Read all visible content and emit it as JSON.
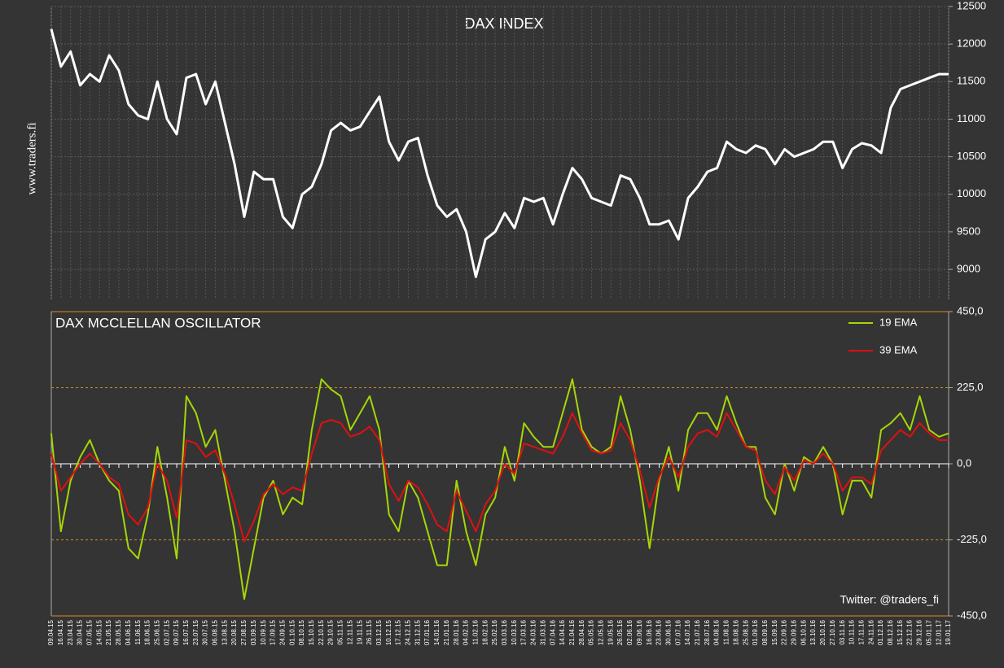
{
  "chart_data": [
    {
      "type": "line",
      "title": "DAX INDEX",
      "side_label": "www.traders.fi",
      "series": [
        {
          "name": "DAX",
          "color": "#ffffff",
          "values": [
            12200,
            11700,
            11900,
            11450,
            11600,
            11500,
            11850,
            11650,
            11200,
            11050,
            11000,
            11500,
            11000,
            10800,
            11550,
            11600,
            11200,
            11500,
            10950,
            10400,
            9700,
            10300,
            10200,
            10200,
            9700,
            9550,
            10000,
            10100,
            10400,
            10850,
            10950,
            10850,
            10900,
            11100,
            11300,
            10700,
            10450,
            10700,
            10750,
            10250,
            9850,
            9700,
            9800,
            9500,
            8900,
            9400,
            9500,
            9750,
            9550,
            9950,
            9900,
            9950,
            9600,
            10000,
            10350,
            10200,
            9950,
            9900,
            9850,
            10250,
            10200,
            9950,
            9600,
            9600,
            9650,
            9400,
            9950,
            10100,
            10300,
            10350,
            10700,
            10600,
            10550,
            10650,
            10600,
            10400,
            10600,
            10500,
            10550,
            10600,
            10700,
            10700,
            10350,
            10600,
            10680,
            10650,
            10550,
            11150,
            11400,
            11450,
            11500,
            11550,
            11600,
            11600
          ]
        }
      ],
      "ylim": [
        8600,
        12500
      ],
      "yticks": [
        9000,
        9500,
        10000,
        10500,
        11000,
        11500,
        12000,
        12500
      ],
      "grid": true
    },
    {
      "type": "line",
      "title": "DAX MCCLELLAN OSCILLATOR",
      "annotation": "Twitter:  @traders_fi",
      "categories": [
        "09.04.15",
        "16.04.15",
        "23.04.15",
        "30.04.15",
        "07.05.15",
        "14.05.15",
        "21.05.15",
        "28.05.15",
        "04.06.15",
        "11.06.15",
        "18.06.15",
        "25.06.15",
        "02.07.15",
        "09.07.15",
        "16.07.15",
        "23.07.15",
        "30.07.15",
        "06.08.15",
        "13.08.15",
        "20.08.15",
        "27.08.15",
        "03.09.15",
        "10.09.15",
        "17.09.15",
        "24.09.15",
        "01.10.15",
        "08.10.15",
        "15.10.15",
        "22.10.15",
        "29.10.15",
        "05.11.15",
        "12.11.15",
        "19.11.15",
        "26.11.15",
        "03.12.15",
        "10.12.15",
        "17.12.15",
        "24.12.15",
        "31.12.15",
        "07.01.16",
        "14.01.16",
        "21.01.16",
        "28.01.16",
        "04.02.16",
        "11.02.16",
        "18.02.16",
        "25.02.16",
        "03.03.16",
        "10.03.16",
        "17.03.16",
        "24.03.16",
        "31.03.16",
        "07.04.16",
        "14.04.16",
        "21.04.16",
        "28.04.16",
        "05.05.16",
        "12.05.16",
        "19.05.16",
        "26.05.16",
        "02.06.16",
        "09.06.16",
        "16.06.16",
        "23.06.16",
        "30.06.16",
        "07.07.16",
        "14.07.16",
        "21.07.16",
        "28.07.16",
        "04.08.16",
        "11.08.16",
        "18.08.16",
        "25.08.16",
        "01.09.16",
        "08.09.16",
        "15.09.16",
        "22.09.16",
        "29.09.16",
        "06.10.16",
        "13.10.16",
        "20.10.16",
        "27.10.16",
        "03.11.16",
        "10.11.16",
        "17.11.16",
        "24.11.16",
        "01.12.16",
        "08.12.16",
        "15.12.16",
        "22.12.16",
        "29.12.16",
        "05.01.17",
        "12.01.17",
        "19.01.17"
      ],
      "series": [
        {
          "name": "19 EMA",
          "color": "#a6d608",
          "values": [
            90,
            -200,
            -50,
            20,
            70,
            0,
            -50,
            -80,
            -250,
            -280,
            -150,
            50,
            -100,
            -280,
            200,
            150,
            50,
            100,
            -50,
            -200,
            -400,
            -250,
            -100,
            -50,
            -150,
            -100,
            -120,
            100,
            250,
            220,
            200,
            100,
            150,
            200,
            100,
            -150,
            -200,
            -50,
            -100,
            -200,
            -300,
            -300,
            -50,
            -200,
            -300,
            -150,
            -100,
            50,
            -50,
            120,
            80,
            50,
            50,
            150,
            250,
            100,
            50,
            30,
            50,
            200,
            100,
            -50,
            -250,
            -50,
            50,
            -80,
            100,
            150,
            150,
            100,
            200,
            120,
            50,
            50,
            -100,
            -150,
            0,
            -80,
            20,
            0,
            50,
            0,
            -150,
            -50,
            -50,
            -100,
            100,
            120,
            150,
            100,
            200,
            100,
            80,
            90
          ]
        },
        {
          "name": "39 EMA",
          "color": "#e01010",
          "values": [
            30,
            -80,
            -40,
            0,
            30,
            0,
            -40,
            -60,
            -150,
            -180,
            -130,
            0,
            -50,
            -160,
            70,
            60,
            20,
            40,
            -30,
            -120,
            -230,
            -170,
            -90,
            -60,
            -90,
            -70,
            -80,
            30,
            120,
            130,
            120,
            80,
            90,
            110,
            70,
            -60,
            -110,
            -50,
            -70,
            -120,
            -180,
            -200,
            -80,
            -140,
            -200,
            -120,
            -80,
            0,
            -30,
            60,
            50,
            40,
            30,
            80,
            150,
            90,
            40,
            30,
            40,
            120,
            70,
            -20,
            -130,
            -40,
            20,
            -40,
            50,
            90,
            100,
            80,
            150,
            100,
            50,
            40,
            -50,
            -90,
            -10,
            -50,
            10,
            0,
            30,
            0,
            -80,
            -40,
            -40,
            -60,
            40,
            70,
            100,
            80,
            120,
            90,
            70,
            70
          ]
        }
      ],
      "ylim": [
        -450,
        450
      ],
      "yticks": [
        {
          "value": 450,
          "label": "450,0"
        },
        {
          "value": 225,
          "label": "225,0"
        },
        {
          "value": 0,
          "label": "0,0"
        },
        {
          "value": -225,
          "label": "-225,0"
        },
        {
          "value": -450,
          "label": "-450,0"
        }
      ],
      "grid": true
    }
  ]
}
